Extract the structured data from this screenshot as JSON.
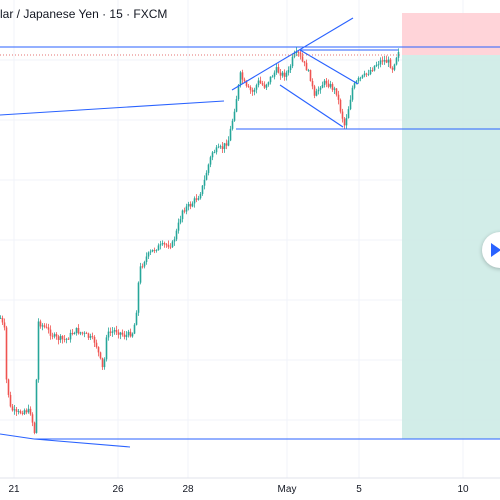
{
  "header": {
    "title": "lar / Japanese Yen · 15 · FXCM"
  },
  "chart_data": {
    "type": "candlestick",
    "x_tick_labels": [
      "21",
      "26",
      "28",
      "May",
      "5",
      "10"
    ],
    "colors": {
      "up": "#26a69a",
      "down": "#ef5350",
      "trendline": "#2962ff",
      "stop_zone": "#ffcdd2",
      "target_zone": "#cdebe6",
      "price_line": "#e57373"
    },
    "annotations": [
      "trendline",
      "horizontal-line",
      "parallel-channel",
      "long-position"
    ]
  },
  "controls": {
    "nav_icon": "go-to-realtime-icon"
  }
}
